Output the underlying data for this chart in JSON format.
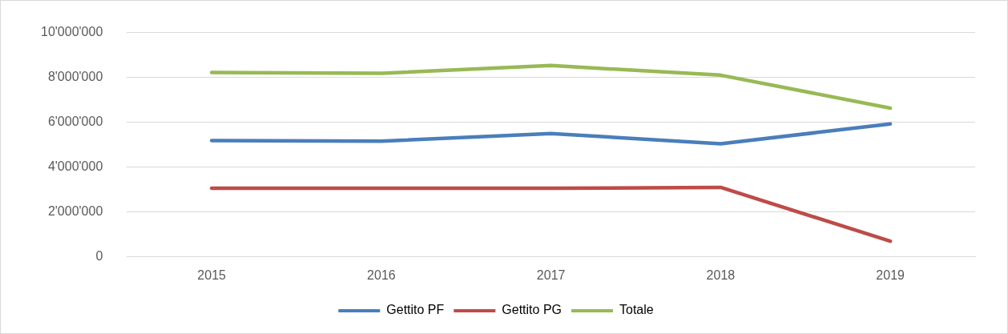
{
  "chart_data": {
    "type": "line",
    "categories": [
      "2015",
      "2016",
      "2017",
      "2018",
      "2019"
    ],
    "series": [
      {
        "name": "Gettito PF",
        "color": "#4a7ebb",
        "values": [
          5190000,
          5160000,
          5500000,
          5040000,
          5930000
        ]
      },
      {
        "name": "Gettito PG",
        "color": "#be4b48",
        "values": [
          3060000,
          3060000,
          3060000,
          3100000,
          700000
        ]
      },
      {
        "name": "Totale",
        "color": "#98b954",
        "values": [
          8220000,
          8180000,
          8530000,
          8100000,
          6630000
        ]
      }
    ],
    "ylim": [
      0,
      10000000
    ],
    "yticks": [
      0,
      {
        "value": 2000000,
        "label": "2'000'000"
      },
      {
        "value": 4000000,
        "label": "4'000'000"
      },
      {
        "value": 6000000,
        "label": "6'000'000"
      },
      {
        "value": 8000000,
        "label": "8'000'000"
      },
      {
        "value": 10000000,
        "label": "10'000'000"
      }
    ],
    "grid": "y",
    "legend": "bottom",
    "marker": "none",
    "line_style": "solid"
  }
}
